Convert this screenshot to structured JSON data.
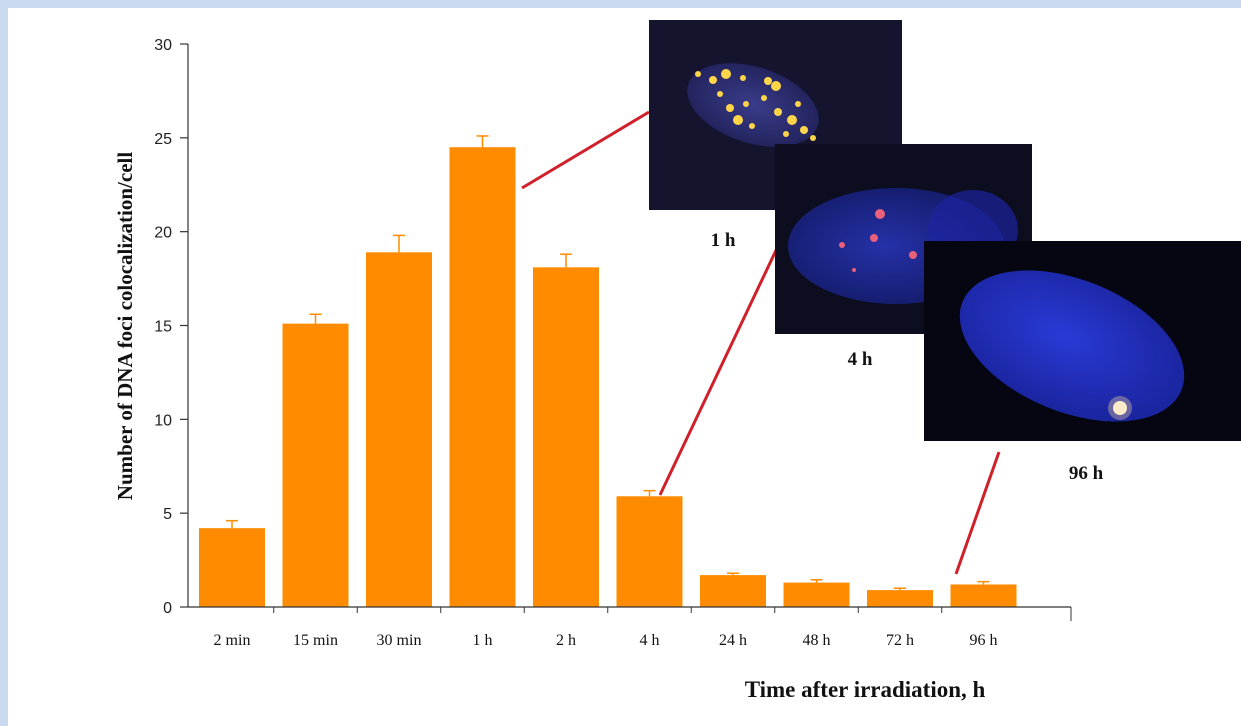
{
  "chart_data": {
    "type": "bar",
    "categories": [
      "2 min",
      "15 min",
      "30 min",
      "1 h",
      "2 h",
      "4 h",
      "24 h",
      "48 h",
      "72 h",
      "96 h"
    ],
    "series": [
      {
        "values": [
          4.2,
          15.1,
          18.9,
          24.5,
          18.1,
          5.9,
          1.7,
          1.3,
          0.9,
          1.2
        ],
        "errors": [
          0.4,
          0.5,
          0.9,
          0.6,
          0.7,
          0.3,
          0.1,
          0.15,
          0.1,
          0.15
        ]
      }
    ],
    "xlabel": "Time after irradiation, h",
    "ylabel": "Number of DNA foci colocalization/cell",
    "ylim": [
      0,
      30
    ],
    "yticks": [
      0,
      5,
      10,
      15,
      20,
      25,
      30
    ],
    "grid": false,
    "bar_color": "#ff8c00",
    "error_color": "#ff8c00",
    "annotations": [
      {
        "label": "1 h",
        "points_to": "1 h",
        "image": "cell-nucleus-micrograph-many-foci"
      },
      {
        "label": "4 h",
        "points_to": "4 h",
        "image": "cell-nucleus-micrograph-few-foci"
      },
      {
        "label": "96 h",
        "points_to": "96 h",
        "image": "cell-nucleus-micrograph-single-focus"
      }
    ],
    "connector_color": "#d0202a"
  }
}
